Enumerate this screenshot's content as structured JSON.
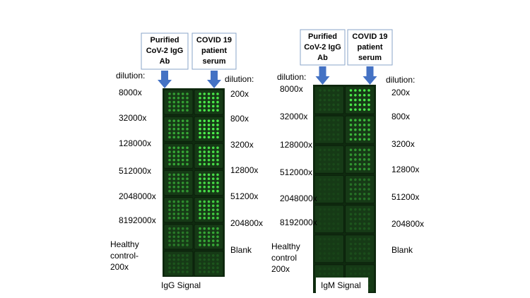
{
  "panels": [
    {
      "headers": [
        [
          "Purified",
          "CoV-2 IgG",
          "Ab"
        ],
        [
          "COVID 19",
          "patient",
          "serum"
        ]
      ],
      "left_title": "dilution:",
      "left_labels": [
        [
          "8000x"
        ],
        [
          "32000x"
        ],
        [
          "128000x"
        ],
        [
          "512000x"
        ],
        [
          "2048000x"
        ],
        [
          "8192000x"
        ],
        [
          "Healthy",
          "control-",
          "200x"
        ]
      ],
      "right_title": "dilution:",
      "right_labels": [
        "200x",
        "800x",
        "3200x",
        "12800x",
        "51200x",
        "204800x",
        "Blank"
      ],
      "signal": "IgG Signal"
    },
    {
      "headers": [
        [
          "Purified",
          "CoV-2 IgG",
          "Ab"
        ],
        [
          "COVID 19",
          "patient",
          "serum"
        ]
      ],
      "left_title": "dilution:",
      "left_labels": [
        [
          "8000x"
        ],
        [
          "32000x"
        ],
        [
          "128000x"
        ],
        [
          "512000x"
        ],
        [
          "2048000x"
        ],
        [
          "8192000x"
        ],
        [
          "Healthy",
          "control",
          "200x"
        ]
      ],
      "right_title": "dilution:",
      "right_labels": [
        "200x",
        "800x",
        "3200x",
        "12800x",
        "51200x",
        "204800x",
        "Blank"
      ],
      "signal": "IgM Signal"
    }
  ]
}
